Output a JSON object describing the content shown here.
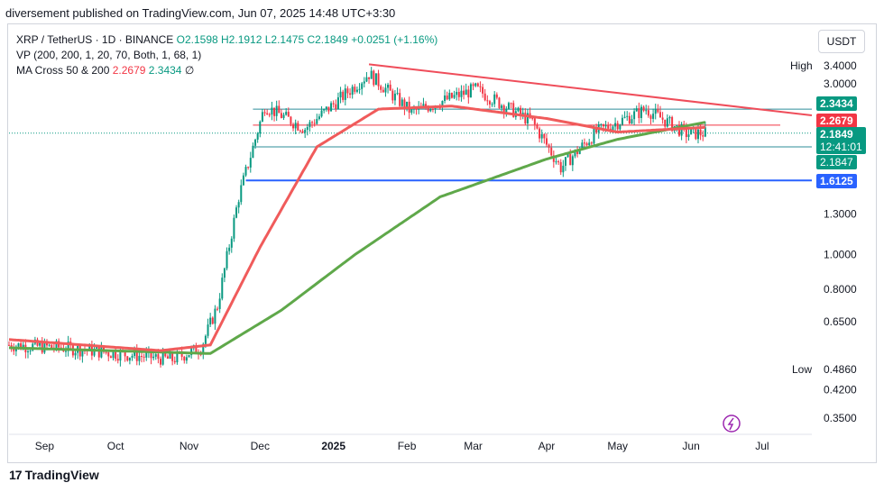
{
  "header": {
    "published": "diversement published on TradingView.com, Jun 07, 2025 14:48 UTC+3:30"
  },
  "legend": {
    "symbol": "XRP / TetherUS · 1D · BINANCE",
    "open": "O2.1598",
    "high": "H2.1912",
    "low": "L2.1475",
    "close": "C2.1849",
    "change": "+0.0251 (+1.16%)",
    "vp": "VP (200, 200, 1, 20, 70, Both, 1, 68, 1)",
    "ma_label": "MA Cross 50 & 200",
    "ma50": "2.2679",
    "ma200": "2.3434",
    "ma_end": "∅"
  },
  "currency": "USDT",
  "tags": {
    "high_label": "High",
    "high_val": "3.4000",
    "low_label": "Low",
    "low_val": "0.4860",
    "ma200": "2.3434",
    "ma50": "2.2679",
    "price": "2.1849",
    "countdown": "12:41:01",
    "price2": "2.1847",
    "support": "1.6125"
  },
  "colors": {
    "up": "#089981",
    "down": "#f23645",
    "ma50": "#f05b5b",
    "ma200": "#5fa84a",
    "trend": "#ef4d5a",
    "support": "#2962ff",
    "range": "#2e8e9a"
  },
  "footer": {
    "brand": "TradingView"
  },
  "chart_data": {
    "type": "candlestick",
    "y_scale": "log",
    "y_ticks": [
      "3.0000",
      "1.3000",
      "1.0000",
      "0.8000",
      "0.6500",
      "0.4200",
      "0.3500"
    ],
    "x_ticks": [
      "Sep",
      "Oct",
      "Nov",
      "Dec",
      "2025",
      "Feb",
      "Mar",
      "Apr",
      "May",
      "Jun",
      "Jul"
    ],
    "xlim": [
      "2024-08-17",
      "2025-07-22"
    ],
    "ylim": [
      0.32,
      4.1
    ],
    "ohlc_keypoints": [
      {
        "date": "2024-08-17",
        "close": 0.56
      },
      {
        "date": "2024-09-10",
        "close": 0.55
      },
      {
        "date": "2024-10-02",
        "close": 0.53
      },
      {
        "date": "2024-10-25",
        "close": 0.51
      },
      {
        "date": "2024-11-06",
        "close": 0.55
      },
      {
        "date": "2024-11-13",
        "close": 0.72
      },
      {
        "date": "2024-11-22",
        "close": 1.45
      },
      {
        "date": "2024-12-03",
        "close": 2.6
      },
      {
        "date": "2024-12-20",
        "close": 2.25
      },
      {
        "date": "2025-01-16",
        "close": 3.2
      },
      {
        "date": "2025-02-03",
        "close": 2.5
      },
      {
        "date": "2025-03-02",
        "close": 2.9
      },
      {
        "date": "2025-03-26",
        "close": 2.35
      },
      {
        "date": "2025-04-07",
        "close": 1.75
      },
      {
        "date": "2025-04-22",
        "close": 2.2
      },
      {
        "date": "2025-05-13",
        "close": 2.55
      },
      {
        "date": "2025-05-30",
        "close": 2.18
      },
      {
        "date": "2025-06-07",
        "close": 2.1849
      }
    ],
    "ma50_keypoints": [
      {
        "date": "2024-08-17",
        "value": 0.58
      },
      {
        "date": "2024-10-20",
        "value": 0.54
      },
      {
        "date": "2024-11-10",
        "value": 0.56
      },
      {
        "date": "2024-12-01",
        "value": 1.05
      },
      {
        "date": "2024-12-25",
        "value": 2.0
      },
      {
        "date": "2025-01-20",
        "value": 2.55
      },
      {
        "date": "2025-02-20",
        "value": 2.6
      },
      {
        "date": "2025-04-01",
        "value": 2.4
      },
      {
        "date": "2025-05-01",
        "value": 2.2
      },
      {
        "date": "2025-06-07",
        "value": 2.2679
      }
    ],
    "ma200_keypoints": [
      {
        "date": "2024-08-17",
        "value": 0.55
      },
      {
        "date": "2024-11-10",
        "value": 0.53
      },
      {
        "date": "2024-12-10",
        "value": 0.7
      },
      {
        "date": "2025-01-10",
        "value": 1.0
      },
      {
        "date": "2025-02-15",
        "value": 1.45
      },
      {
        "date": "2025-04-01",
        "value": 1.85
      },
      {
        "date": "2025-05-01",
        "value": 2.1
      },
      {
        "date": "2025-06-07",
        "value": 2.3434
      }
    ],
    "trendline": [
      {
        "date": "2025-01-16",
        "value": 3.4
      },
      {
        "date": "2025-07-22",
        "value": 2.45
      }
    ],
    "support": 1.6125,
    "range_lines": [
      2.55,
      2.0
    ]
  }
}
